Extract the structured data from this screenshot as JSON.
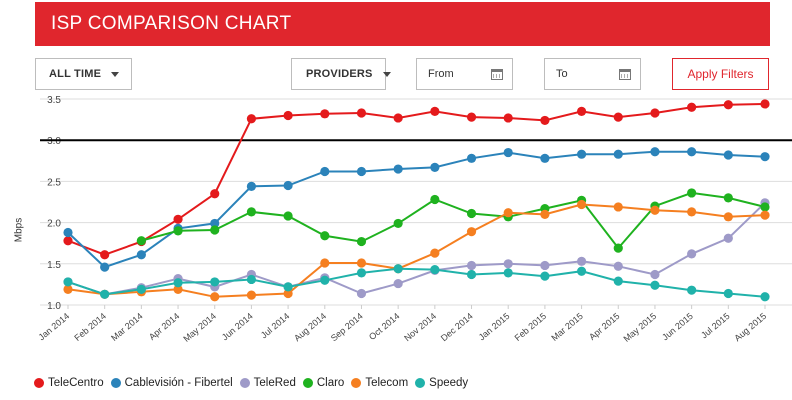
{
  "header": {
    "title": "ISP COMPARISON CHART"
  },
  "filters": {
    "time_label": "ALL TIME",
    "providers_label": "PROVIDERS",
    "from_placeholder": "From",
    "to_placeholder": "To",
    "apply_label": "Apply Filters",
    "accent_color": "#e0262d"
  },
  "chart_data": {
    "type": "line",
    "ylabel": "Mbps",
    "ylim": [
      1.0,
      3.5
    ],
    "yticks": [
      "1.0",
      "1.5",
      "2.0",
      "2.5",
      "3.0",
      "3.5"
    ],
    "grid": true,
    "legend_position": "bottom-left",
    "reference_line": 3.0,
    "categories": [
      "Jan 2014",
      "Feb 2014",
      "Mar 2014",
      "Apr 2014",
      "May 2014",
      "Jun 2014",
      "Jul 2014",
      "Aug 2014",
      "Sep 2014",
      "Oct 2014",
      "Nov 2014",
      "Dec 2014",
      "Jan 2015",
      "Feb 2015",
      "Mar 2015",
      "Apr 2015",
      "May 2015",
      "Jun 2015",
      "Jul 2015",
      "Aug 2015"
    ],
    "series": [
      {
        "name": "TeleCentro",
        "color": "#e41a1c",
        "values": [
          1.78,
          1.61,
          1.77,
          2.04,
          2.35,
          3.26,
          3.3,
          3.32,
          3.33,
          3.27,
          3.35,
          3.28,
          3.27,
          3.24,
          3.35,
          3.28,
          3.33,
          3.4,
          3.43,
          3.44
        ]
      },
      {
        "name": "Cablevisión - Fibertel",
        "color": "#2b83ba",
        "values": [
          1.88,
          1.46,
          1.61,
          1.93,
          1.99,
          2.44,
          2.45,
          2.62,
          2.62,
          2.65,
          2.67,
          2.78,
          2.85,
          2.78,
          2.83,
          2.83,
          2.86,
          2.86,
          2.82,
          2.8
        ]
      },
      {
        "name": "TeleRed",
        "color": "#9e9ac8",
        "values": [
          1.28,
          1.13,
          1.21,
          1.32,
          1.22,
          1.37,
          1.22,
          1.33,
          1.14,
          1.26,
          1.42,
          1.48,
          1.5,
          1.48,
          1.53,
          1.47,
          1.37,
          1.62,
          1.81,
          2.24
        ]
      },
      {
        "name": "Claro",
        "color": "#1fb21f",
        "values": [
          null,
          null,
          1.78,
          1.9,
          1.91,
          2.13,
          2.08,
          1.84,
          1.77,
          1.99,
          2.28,
          2.11,
          2.07,
          2.17,
          2.27,
          1.69,
          2.2,
          2.36,
          2.3,
          2.19
        ]
      },
      {
        "name": "Telecom",
        "color": "#f57f20",
        "values": [
          1.19,
          1.13,
          1.16,
          1.19,
          1.1,
          1.12,
          1.14,
          1.51,
          1.51,
          1.44,
          1.63,
          1.89,
          2.12,
          2.1,
          2.22,
          2.19,
          2.15,
          2.13,
          2.07,
          2.09
        ]
      },
      {
        "name": "Speedy",
        "color": "#20b2aa",
        "values": [
          1.28,
          1.13,
          1.19,
          1.27,
          1.28,
          1.31,
          1.22,
          1.3,
          1.39,
          1.44,
          1.43,
          1.37,
          1.39,
          1.35,
          1.41,
          1.29,
          1.24,
          1.18,
          1.14,
          1.1
        ]
      }
    ]
  }
}
